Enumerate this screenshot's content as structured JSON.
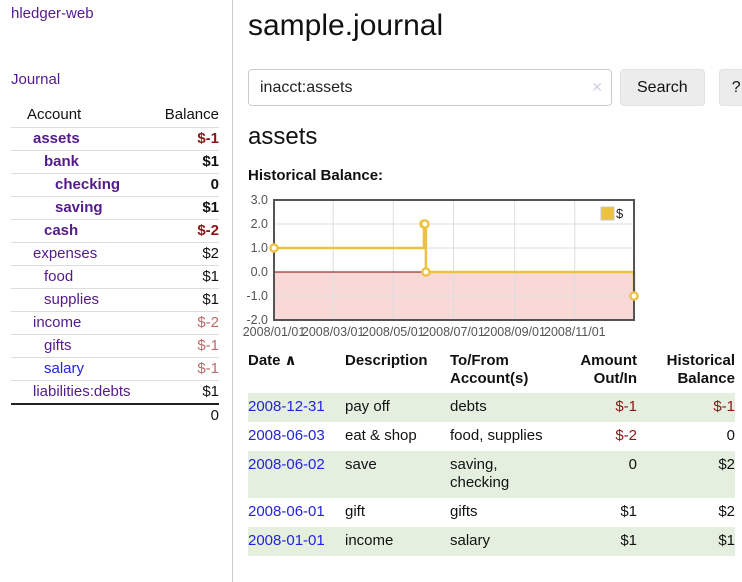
{
  "sidebar": {
    "app_title": "hledger-web",
    "journal_link": "Journal",
    "accounts_table": {
      "account_header": "Account",
      "balance_header": "Balance",
      "rows": [
        {
          "name": "assets",
          "depth": 1,
          "bold": true,
          "balance": "$-1",
          "balance_class": "neg-strong"
        },
        {
          "name": "bank",
          "depth": 2,
          "bold": true,
          "balance": "$1",
          "balance_class": "pos"
        },
        {
          "name": "checking",
          "depth": 3,
          "bold": true,
          "balance": "0",
          "balance_class": "pos"
        },
        {
          "name": "saving",
          "depth": 3,
          "bold": true,
          "balance": "$1",
          "balance_class": "pos"
        },
        {
          "name": "cash",
          "depth": 2,
          "bold": true,
          "balance": "$-2",
          "balance_class": "neg-strong"
        },
        {
          "name": "expenses",
          "depth": 1,
          "bold": false,
          "balance": "$2",
          "balance_class": "pos"
        },
        {
          "name": "food",
          "depth": 2,
          "bold": false,
          "balance": "$1",
          "balance_class": "pos"
        },
        {
          "name": "supplies",
          "depth": 2,
          "bold": false,
          "balance": "$1",
          "balance_class": "pos"
        },
        {
          "name": "income",
          "depth": 1,
          "bold": false,
          "balance": "$-2",
          "balance_class": "neg-soft"
        },
        {
          "name": "gifts",
          "depth": 2,
          "bold": false,
          "balance": "$-1",
          "balance_class": "neg-soft"
        },
        {
          "name": "salary",
          "depth": 2,
          "bold": false,
          "balance": "$-1",
          "balance_class": "neg-soft",
          "link_color": "blue"
        },
        {
          "name": "liabilities:debts",
          "depth": 1,
          "bold": false,
          "balance": "$1",
          "balance_class": "pos"
        }
      ],
      "total": "0"
    }
  },
  "main": {
    "title": "sample.journal",
    "search": {
      "value": "inacct:assets",
      "clear_icon": "✕",
      "search_button": "Search",
      "help_button": "?"
    },
    "section_heading": "assets",
    "chart_heading": "Historical Balance:"
  },
  "chart_data": {
    "type": "line",
    "title": "Historical Balance:",
    "step": true,
    "series": [
      {
        "name": "$",
        "color": "#edc240",
        "points": [
          [
            "2008-01-01",
            1
          ],
          [
            "2008-06-01",
            2
          ],
          [
            "2008-06-02",
            2
          ],
          [
            "2008-06-03",
            0
          ],
          [
            "2008-12-31",
            -1
          ]
        ]
      }
    ],
    "x_range": [
      "2008-01-01",
      "2008-12-31"
    ],
    "ylim": [
      -2,
      3
    ],
    "y_ticks": [
      {
        "v": 3,
        "label": "3.0"
      },
      {
        "v": 2,
        "label": "2.0"
      },
      {
        "v": 1,
        "label": "1.0"
      },
      {
        "v": 0,
        "label": "0.0"
      },
      {
        "v": -1,
        "label": "-1.0"
      },
      {
        "v": -2,
        "label": "-2.0"
      }
    ],
    "x_ticks": [
      {
        "d": "2008-01-01",
        "label": "2008/01/01"
      },
      {
        "d": "2008-03-01",
        "label": "2008/03/01"
      },
      {
        "d": "2008-05-01",
        "label": "2008/05/01"
      },
      {
        "d": "2008-07-01",
        "label": "2008/07/01"
      },
      {
        "d": "2008-09-01",
        "label": "2008/09/01"
      },
      {
        "d": "2008-11-01",
        "label": "2008/11/01"
      }
    ],
    "grid": true,
    "legend_position": "top-right",
    "colors": {
      "negative_region_fill": "#f9d8d8",
      "zero_line": "#8b0000",
      "grid_line": "#dddddd",
      "plot_border": "#545454",
      "tick_label": "#545454",
      "legend_border": "#c8c8c8"
    }
  },
  "register_table": {
    "sort_icon": "∧",
    "headers": {
      "date": "Date",
      "description": "Description",
      "accounts": "To/From Account(s)",
      "amount": "Amount Out/In",
      "balance": "Historical Balance"
    },
    "rows": [
      {
        "date": "2008-12-31",
        "description": "pay off",
        "accounts": "debts",
        "amount": "$-1",
        "amount_negative": true,
        "balance": "$-1",
        "balance_negative": true
      },
      {
        "date": "2008-06-03",
        "description": "eat & shop",
        "accounts": "food, supplies",
        "amount": "$-2",
        "amount_negative": true,
        "balance": "0",
        "balance_negative": false
      },
      {
        "date": "2008-06-02",
        "description": "save",
        "accounts": "saving, checking",
        "amount": "0",
        "amount_negative": false,
        "balance": "$2",
        "balance_negative": false
      },
      {
        "date": "2008-06-01",
        "description": "gift",
        "accounts": "gifts",
        "amount": "$1",
        "amount_negative": false,
        "balance": "$2",
        "balance_negative": false
      },
      {
        "date": "2008-01-01",
        "description": "income",
        "accounts": "salary",
        "amount": "$1",
        "amount_negative": false,
        "balance": "$1",
        "balance_negative": false
      }
    ]
  },
  "colors": {
    "link_purple": "#551a8b",
    "link_blue": "#2323dd",
    "negative_strong": "#8b1515",
    "negative_soft": "#bb6b6b",
    "row_stripe_green": "#e4efdf",
    "button_bg": "#ececec",
    "divider": "#cccccc",
    "table_border": "#dddddd"
  }
}
